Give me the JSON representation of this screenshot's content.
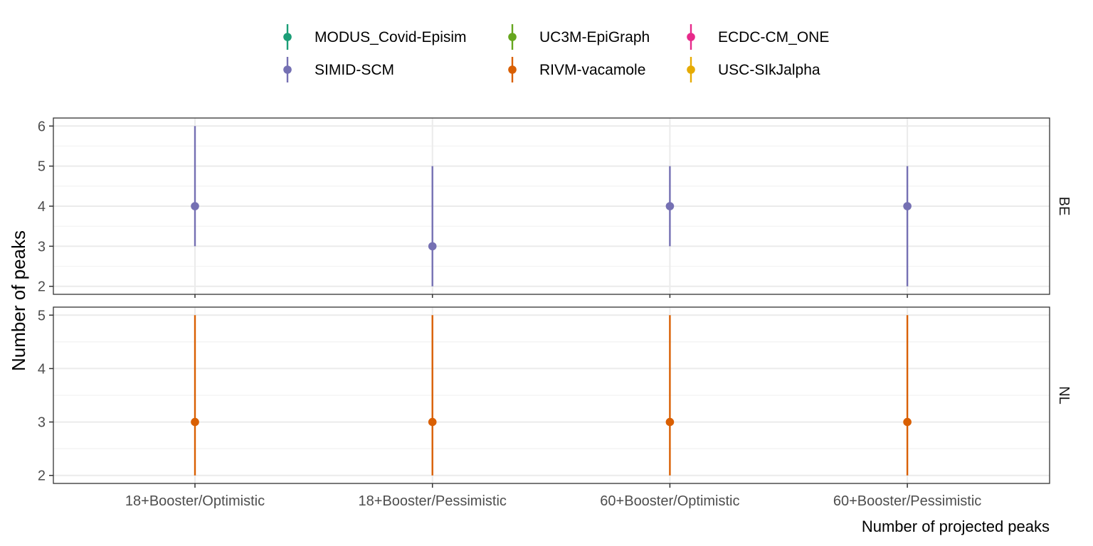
{
  "chart_data": {
    "type": "scatter",
    "subtype": "pointrange-faceted",
    "xlabel": "Number of projected peaks",
    "ylabel": "Number of peaks",
    "categories": [
      "18+Booster/Optimistic",
      "18+Booster/Pessimistic",
      "60+Booster/Optimistic",
      "60+Booster/Pessimistic"
    ],
    "legend": {
      "placement": "top",
      "entries": [
        {
          "name": "MODUS_Covid-Episim",
          "color": "#1B9E77"
        },
        {
          "name": "SIMID-SCM",
          "color": "#7570B3"
        },
        {
          "name": "UC3M-EpiGraph",
          "color": "#66A61E"
        },
        {
          "name": "RIVM-vacamole",
          "color": "#D95F02"
        },
        {
          "name": "ECDC-CM_ONE",
          "color": "#E7298A"
        },
        {
          "name": "USC-SIkJalpha",
          "color": "#E6AB02"
        }
      ]
    },
    "grid": true,
    "panels": [
      {
        "label": "BE",
        "ylim": [
          1.8,
          6.2
        ],
        "yticks": [
          2,
          3,
          4,
          5,
          6
        ],
        "series": [
          {
            "name": "SIMID-SCM",
            "color": "#7570B3",
            "points": [
              {
                "x": "18+Booster/Optimistic",
                "y": 4,
                "low": 3,
                "high": 6
              },
              {
                "x": "18+Booster/Pessimistic",
                "y": 3,
                "low": 2,
                "high": 5
              },
              {
                "x": "60+Booster/Optimistic",
                "y": 4,
                "low": 3,
                "high": 5
              },
              {
                "x": "60+Booster/Pessimistic",
                "y": 4,
                "low": 2,
                "high": 5
              }
            ]
          }
        ]
      },
      {
        "label": "NL",
        "ylim": [
          1.85,
          5.15
        ],
        "yticks": [
          2,
          3,
          4,
          5
        ],
        "series": [
          {
            "name": "RIVM-vacamole",
            "color": "#D95F02",
            "points": [
              {
                "x": "18+Booster/Optimistic",
                "y": 3,
                "low": 2,
                "high": 5
              },
              {
                "x": "18+Booster/Pessimistic",
                "y": 3,
                "low": 2,
                "high": 5
              },
              {
                "x": "60+Booster/Optimistic",
                "y": 3,
                "low": 2,
                "high": 5
              },
              {
                "x": "60+Booster/Pessimistic",
                "y": 3,
                "low": 2,
                "high": 5
              }
            ]
          }
        ]
      }
    ]
  }
}
